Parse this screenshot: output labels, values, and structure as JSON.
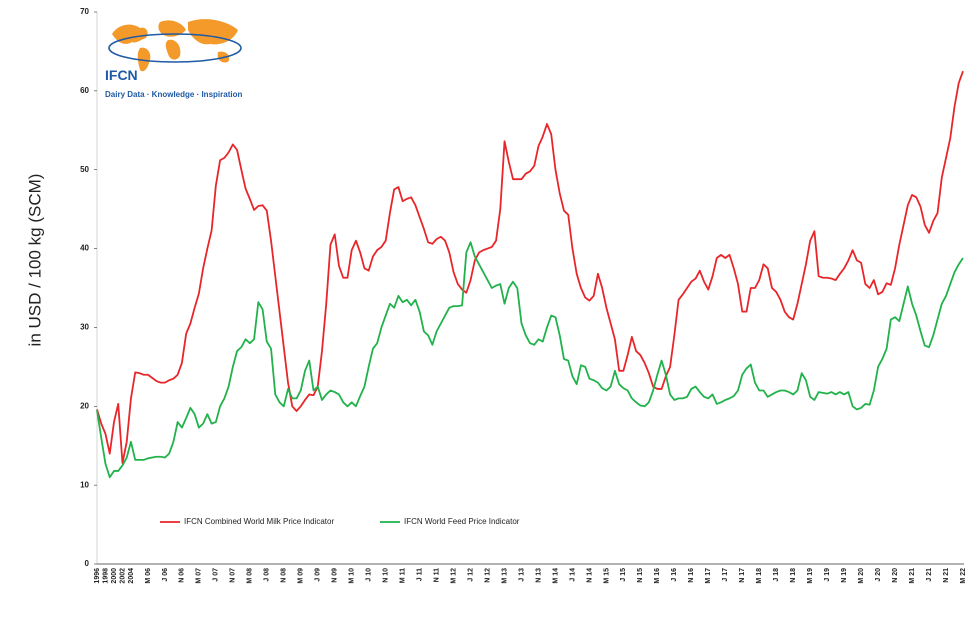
{
  "logo": {
    "name": "IFCN",
    "tagline": "Dairy Data · Knowledge · Inspiration"
  },
  "chart_data": {
    "type": "line",
    "y_label": "in USD / 100 kg (SCM)",
    "ylim": [
      0,
      70
    ],
    "yticks": [
      0,
      10,
      20,
      30,
      40,
      50,
      60,
      70
    ],
    "grid": false,
    "legend": "bottom-left",
    "categories": [
      "1996",
      null,
      "1998",
      null,
      "2000",
      null,
      "2002",
      null,
      "2004",
      null,
      null,
      null,
      "M 06",
      null,
      null,
      null,
      "J 06",
      null,
      null,
      null,
      "N 06",
      null,
      null,
      null,
      "M 07",
      null,
      null,
      null,
      "J 07",
      null,
      null,
      null,
      "N 07",
      null,
      null,
      null,
      "M 08",
      null,
      null,
      null,
      "J 08",
      null,
      null,
      null,
      "N 08",
      null,
      null,
      null,
      "M 09",
      null,
      null,
      null,
      "J 09",
      null,
      null,
      null,
      "N 09",
      null,
      null,
      null,
      "M 10",
      null,
      null,
      null,
      "J 10",
      null,
      null,
      null,
      "N 10",
      null,
      null,
      null,
      "M 11",
      null,
      null,
      null,
      "J 11",
      null,
      null,
      null,
      "N 11",
      null,
      null,
      null,
      "M 12",
      null,
      null,
      null,
      "J 12",
      null,
      null,
      null,
      "N 12",
      null,
      null,
      null,
      "M 13",
      null,
      null,
      null,
      "J 13",
      null,
      null,
      null,
      "N 13",
      null,
      null,
      null,
      "M 14",
      null,
      null,
      null,
      "J 14",
      null,
      null,
      null,
      "N 14",
      null,
      null,
      null,
      "M 15",
      null,
      null,
      null,
      "J 15",
      null,
      null,
      null,
      "N 15",
      null,
      null,
      null,
      "M 16",
      null,
      null,
      null,
      "J 16",
      null,
      null,
      null,
      "N 16",
      null,
      null,
      null,
      "M 17",
      null,
      null,
      null,
      "J 17",
      null,
      null,
      null,
      "N 17",
      null,
      null,
      null,
      "M 18",
      null,
      null,
      null,
      "J 18",
      null,
      null,
      null,
      "N 18",
      null,
      null,
      null,
      "M 19",
      null,
      null,
      null,
      "J 19",
      null,
      null,
      null,
      "N 19",
      null,
      null,
      null,
      "M 20",
      null,
      null,
      null,
      "J 20",
      null,
      null,
      null,
      "N 20",
      null,
      null,
      null,
      "M 21",
      null,
      null,
      null,
      "J 21",
      null,
      null,
      null,
      "N 21",
      null,
      null,
      null,
      "M 22"
    ],
    "series": [
      {
        "name": "IFCN Combined World Milk Price Indicator",
        "color": "#e8262a",
        "values": [
          19.6,
          17.8,
          16.5,
          14.0,
          18.0,
          20.3,
          12.8,
          15.5,
          21.0,
          24.3,
          24.2,
          24.0,
          24.0,
          23.6,
          23.2,
          23.0,
          23.0,
          23.3,
          23.5,
          24.0,
          25.5,
          29.2,
          30.5,
          32.5,
          34.3,
          37.5,
          40.0,
          42.3,
          48.0,
          51.2,
          51.5,
          52.2,
          53.2,
          52.5,
          50.0,
          47.6,
          46.3,
          44.9,
          45.4,
          45.5,
          44.8,
          41.0,
          36.5,
          32.0,
          27.5,
          23.0,
          20.0,
          19.4,
          20.0,
          20.8,
          21.5,
          21.4,
          22.5,
          27.0,
          33.0,
          40.5,
          41.8,
          37.8,
          36.3,
          36.3,
          39.8,
          41.0,
          39.5,
          37.5,
          37.2,
          39.0,
          39.8,
          40.2,
          41.0,
          44.5,
          47.5,
          47.8,
          46.0,
          46.3,
          46.5,
          45.5,
          44.0,
          42.5,
          40.8,
          40.6,
          41.2,
          41.5,
          41.0,
          39.5,
          37.0,
          35.5,
          34.8,
          34.4,
          36.0,
          38.5,
          39.5,
          39.8,
          40.0,
          40.2,
          41.0,
          45.0,
          53.6,
          51.0,
          48.8,
          48.8,
          48.8,
          49.5,
          49.8,
          50.5,
          53.0,
          54.2,
          55.8,
          54.5,
          50.0,
          47.0,
          44.8,
          44.3,
          40.0,
          36.8,
          35.0,
          33.8,
          33.4,
          34.0,
          36.8,
          35.0,
          32.5,
          30.5,
          28.5,
          24.5,
          24.5,
          26.5,
          28.8,
          27.0,
          26.5,
          25.5,
          24.2,
          22.5,
          22.2,
          22.2,
          23.8,
          25.0,
          29.0,
          33.5,
          34.2,
          35.0,
          35.8,
          36.2,
          37.2,
          35.8,
          34.8,
          36.5,
          38.8,
          39.2,
          38.8,
          39.2,
          37.5,
          35.5,
          32.0,
          32.0,
          35.0,
          35.0,
          36.0,
          38.0,
          37.5,
          35.0,
          34.5,
          33.5,
          32.0,
          31.3,
          31.0,
          33.0,
          35.5,
          38.0,
          41.0,
          42.2,
          36.5,
          36.3,
          36.3,
          36.2,
          36.0,
          36.8,
          37.5,
          38.5,
          39.8,
          38.5,
          38.2,
          35.5,
          35.0,
          36.0,
          34.2,
          34.5,
          35.6,
          35.4,
          37.5,
          40.5,
          43.0,
          45.5,
          46.8,
          46.5,
          45.3,
          43.0,
          42.0,
          43.5,
          44.5,
          49.0,
          51.5,
          54.0,
          58.0,
          61.0,
          62.5
        ]
      },
      {
        "name": "IFCN World Feed Price Indicator",
        "color": "#21b24b",
        "values": [
          19.5,
          16.0,
          12.7,
          11.0,
          11.8,
          11.8,
          12.5,
          13.5,
          15.5,
          13.2,
          13.2,
          13.2,
          13.4,
          13.5,
          13.6,
          13.6,
          13.5,
          14.0,
          15.5,
          18.0,
          17.3,
          18.5,
          19.8,
          19.0,
          17.3,
          17.8,
          19.0,
          17.8,
          18.0,
          20.0,
          21.0,
          22.5,
          25.0,
          27.0,
          27.5,
          28.5,
          28.0,
          28.5,
          33.2,
          32.3,
          28.2,
          27.3,
          21.5,
          20.5,
          20.0,
          22.2,
          21.0,
          21.0,
          22.0,
          24.5,
          25.8,
          22.0,
          22.5,
          20.8,
          21.5,
          22.0,
          21.8,
          21.5,
          20.5,
          20.0,
          20.5,
          20.0,
          21.3,
          22.5,
          25.0,
          27.3,
          28.0,
          30.0,
          31.5,
          33.0,
          32.5,
          34.0,
          33.2,
          33.5,
          32.8,
          33.5,
          32.0,
          29.5,
          29.0,
          27.8,
          29.5,
          30.5,
          31.5,
          32.5,
          32.7,
          32.7,
          32.8,
          39.5,
          40.8,
          39.0,
          38.0,
          37.0,
          36.0,
          35.0,
          35.3,
          35.5,
          33.0,
          35.0,
          35.8,
          35.0,
          30.5,
          29.0,
          28.0,
          27.8,
          28.5,
          28.2,
          30.0,
          31.5,
          31.3,
          29.0,
          26.0,
          25.8,
          23.8,
          22.8,
          25.2,
          25.0,
          23.5,
          23.3,
          23.0,
          22.3,
          22.0,
          22.5,
          24.5,
          22.8,
          22.3,
          22.0,
          21.0,
          20.5,
          20.1,
          20.0,
          20.5,
          22.0,
          24.0,
          25.8,
          24.0,
          21.5,
          20.8,
          21.0,
          21.0,
          21.2,
          22.2,
          22.5,
          21.8,
          21.2,
          21.0,
          21.5,
          20.3,
          20.5,
          20.8,
          21.0,
          21.3,
          22.0,
          24.0,
          24.8,
          25.3,
          23.0,
          22.0,
          22.0,
          21.2,
          21.5,
          21.8,
          22.0,
          22.0,
          21.8,
          21.5,
          22.0,
          24.2,
          23.3,
          21.2,
          20.8,
          21.8,
          21.7,
          21.6,
          21.8,
          21.5,
          21.8,
          21.5,
          21.8,
          20.0,
          19.6,
          19.8,
          20.3,
          20.2,
          22.0,
          25.0,
          26.0,
          27.3,
          31.0,
          31.3,
          30.8,
          33.0,
          35.2,
          33.0,
          31.5,
          29.5,
          27.7,
          27.5,
          29.0,
          31.0,
          33.0,
          34.0,
          35.5,
          37.0,
          38.0,
          38.8
        ]
      }
    ]
  }
}
